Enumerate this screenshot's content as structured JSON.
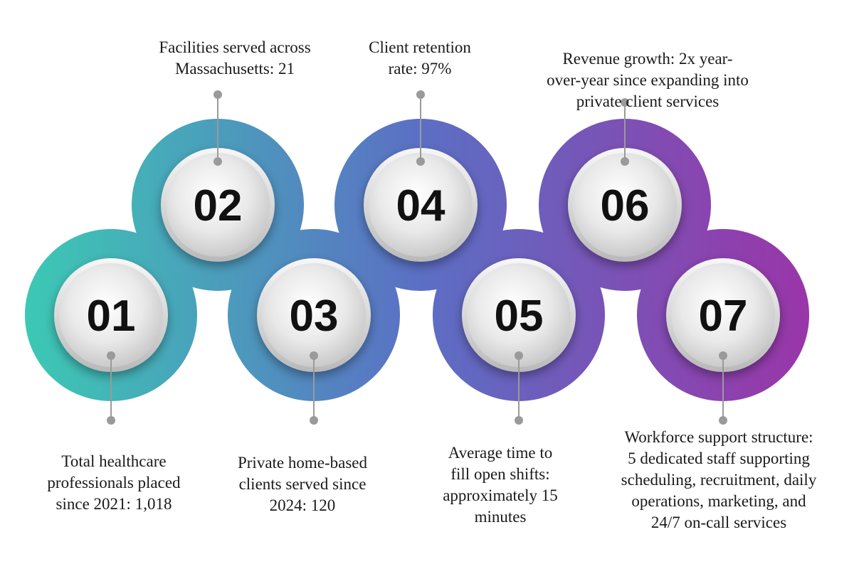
{
  "items": [
    {
      "number": "01",
      "caption": "Total healthcare\nprofessionals placed\nsince 2021: 1,018",
      "color": "#3ec3b8"
    },
    {
      "number": "02",
      "caption": "Facilities served across\nMassachusetts: 21",
      "color": "#3fb5c4"
    },
    {
      "number": "03",
      "caption": "Private home-based\nclients served since\n2024: 120",
      "color": "#5680c6"
    },
    {
      "number": "04",
      "caption": "Client retention\nrate: 97%",
      "color": "#6560bd"
    },
    {
      "number": "05",
      "caption": "Average time to\nfill open shifts:\napproximately 15\nminutes",
      "color": "#7546b1"
    },
    {
      "number": "06",
      "caption": "Revenue growth: 2x year-\nover-year since expanding into\nprivate client services",
      "color": "#8337a8"
    },
    {
      "number": "07",
      "caption": "Workforce support structure:\n5 dedicated staff supporting\nscheduling, recruitment, daily\noperations, marketing, and\n24/7 on-call services",
      "color": "#9237a6"
    }
  ],
  "gradient": {
    "start": "#3cc8b4",
    "mid": "#5b6fc4",
    "end": "#9a35a8"
  }
}
